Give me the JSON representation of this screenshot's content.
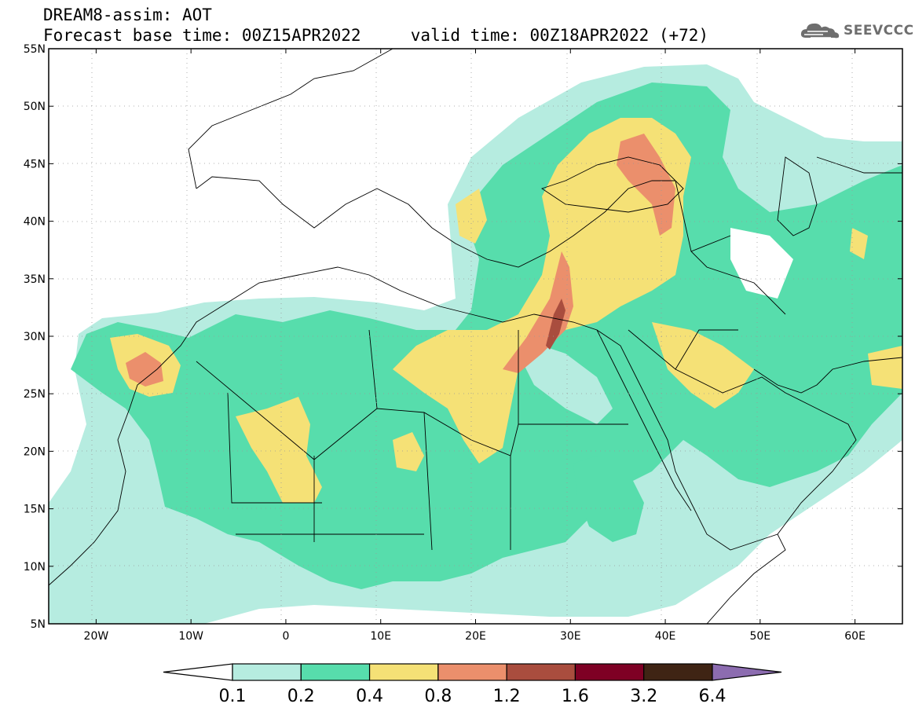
{
  "header": {
    "line1": "DREAM8-assim: AOT",
    "line2": "Forecast base time: 00Z15APR2022     valid time: 00Z18APR2022 (+72)"
  },
  "logo": {
    "text": "SEEVCCC",
    "icon": "cloud-icon"
  },
  "map": {
    "lon_range": [
      -25,
      65
    ],
    "lat_range": [
      5,
      55
    ],
    "lat_ticks": [
      {
        "value": 55,
        "label": "55N"
      },
      {
        "value": 50,
        "label": "50N"
      },
      {
        "value": 45,
        "label": "45N"
      },
      {
        "value": 40,
        "label": "40N"
      },
      {
        "value": 35,
        "label": "35N"
      },
      {
        "value": 30,
        "label": "30N"
      },
      {
        "value": 25,
        "label": "25N"
      },
      {
        "value": 20,
        "label": "20N"
      },
      {
        "value": 15,
        "label": "15N"
      },
      {
        "value": 10,
        "label": "10N"
      },
      {
        "value": 5,
        "label": "5N"
      }
    ],
    "lon_ticks": [
      {
        "value": -20,
        "label": "20W"
      },
      {
        "value": -10,
        "label": "10W"
      },
      {
        "value": 0,
        "label": "0"
      },
      {
        "value": 10,
        "label": "10E"
      },
      {
        "value": 20,
        "label": "20E"
      },
      {
        "value": 30,
        "label": "30E"
      },
      {
        "value": 40,
        "label": "40E"
      },
      {
        "value": 50,
        "label": "50E"
      },
      {
        "value": 60,
        "label": "60E"
      }
    ],
    "grid": "dotted"
  },
  "colorbar": {
    "labels": [
      "0.1",
      "0.2",
      "0.4",
      "0.8",
      "1.2",
      "1.6",
      "3.2",
      "6.4"
    ],
    "colors": [
      "#ffffff",
      "#b6ece0",
      "#57ddac",
      "#f5e176",
      "#eb8f6c",
      "#a94d3e",
      "#7e0024",
      "#3f2414",
      "#8c6cb0"
    ]
  },
  "field": {
    "colors": {
      "c1": "#b6ece0",
      "c2": "#57ddac",
      "c3": "#f5e176",
      "c4": "#eb8f6c",
      "c5": "#a94d3e"
    }
  }
}
